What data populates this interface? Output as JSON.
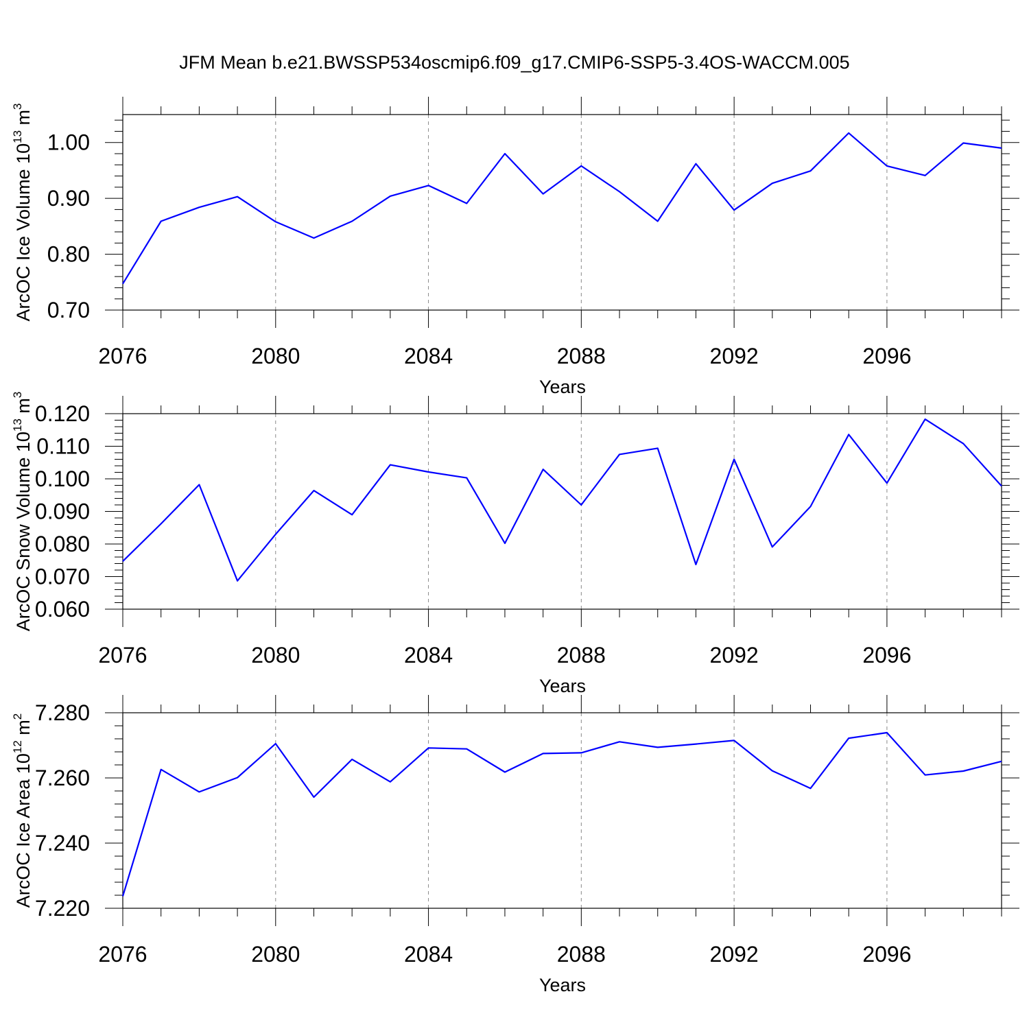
{
  "title": "JFM Mean b.e21.BWSSP534oscmip6.f09_g17.CMIP6-SSP5-3.4OS-WACCM.005",
  "colors": {
    "series": "#0000ff",
    "grid": "#888888",
    "axis": "#000000"
  },
  "chart_data": [
    {
      "type": "line",
      "xlabel": "Years",
      "ylabel": {
        "text": "ArcOC Ice Volume 10",
        "exp": "13",
        "unit": " m",
        "unit_exp": "3"
      },
      "xlim": [
        2076,
        2099
      ],
      "ylim": [
        0.7,
        1.05
      ],
      "x_major_ticks": [
        2076,
        2080,
        2084,
        2088,
        2092,
        2096
      ],
      "x_major_labels": [
        "2076",
        "2080",
        "2084",
        "2088",
        "2092",
        "2096"
      ],
      "y_major_ticks": [
        0.7,
        0.8,
        0.9,
        1.0
      ],
      "y_major_labels": [
        "0.70",
        "0.80",
        "0.90",
        "1.00"
      ],
      "y_minor_step": 0.02,
      "grid": "x-dashed",
      "x": [
        2076,
        2077,
        2078,
        2079,
        2080,
        2081,
        2082,
        2083,
        2084,
        2085,
        2086,
        2087,
        2088,
        2089,
        2090,
        2091,
        2092,
        2093,
        2094,
        2095,
        2096,
        2097,
        2098,
        2099
      ],
      "values": [
        0.747,
        0.859,
        0.884,
        0.903,
        0.858,
        0.829,
        0.859,
        0.904,
        0.923,
        0.891,
        0.98,
        0.908,
        0.958,
        0.912,
        0.859,
        0.962,
        0.879,
        0.927,
        0.949,
        1.017,
        0.958,
        0.941,
        0.999,
        0.99
      ]
    },
    {
      "type": "line",
      "xlabel": "Years",
      "ylabel": {
        "text": "ArcOC Snow Volume 10",
        "exp": "13",
        "unit": " m",
        "unit_exp": "3"
      },
      "xlim": [
        2076,
        2099
      ],
      "ylim": [
        0.06,
        0.12
      ],
      "x_major_ticks": [
        2076,
        2080,
        2084,
        2088,
        2092,
        2096
      ],
      "x_major_labels": [
        "2076",
        "2080",
        "2084",
        "2088",
        "2092",
        "2096"
      ],
      "y_major_ticks": [
        0.06,
        0.07,
        0.08,
        0.09,
        0.1,
        0.11,
        0.12
      ],
      "y_major_labels": [
        "0.060",
        "0.070",
        "0.080",
        "0.090",
        "0.100",
        "0.110",
        "0.120"
      ],
      "y_minor_step": 0.002,
      "grid": "x-dashed",
      "x": [
        2076,
        2077,
        2078,
        2079,
        2080,
        2081,
        2082,
        2083,
        2084,
        2085,
        2086,
        2087,
        2088,
        2089,
        2090,
        2091,
        2092,
        2093,
        2094,
        2095,
        2096,
        2097,
        2098,
        2099
      ],
      "values": [
        0.0747,
        0.0862,
        0.0982,
        0.0687,
        0.083,
        0.0964,
        0.089,
        0.1043,
        0.1021,
        0.1003,
        0.0802,
        0.1029,
        0.092,
        0.1075,
        0.1094,
        0.0737,
        0.106,
        0.0791,
        0.0915,
        0.1136,
        0.0987,
        0.1183,
        0.1108,
        0.0978
      ]
    },
    {
      "type": "line",
      "xlabel": "Years",
      "ylabel": {
        "text": "ArcOC Ice Area 10",
        "exp": "12",
        "unit": " m",
        "unit_exp": "2"
      },
      "xlim": [
        2076,
        2099
      ],
      "ylim": [
        7.22,
        7.28
      ],
      "x_major_ticks": [
        2076,
        2080,
        2084,
        2088,
        2092,
        2096
      ],
      "x_major_labels": [
        "2076",
        "2080",
        "2084",
        "2088",
        "2092",
        "2096"
      ],
      "y_major_ticks": [
        7.22,
        7.24,
        7.26,
        7.28
      ],
      "y_major_labels": [
        "7.220",
        "7.240",
        "7.260",
        "7.280"
      ],
      "y_minor_step": 0.004,
      "grid": "x-dashed",
      "x": [
        2076,
        2077,
        2078,
        2079,
        2080,
        2081,
        2082,
        2083,
        2084,
        2085,
        2086,
        2087,
        2088,
        2089,
        2090,
        2091,
        2092,
        2093,
        2094,
        2095,
        2096,
        2097,
        2098,
        2099
      ],
      "values": [
        7.2237,
        7.2626,
        7.2557,
        7.2601,
        7.2705,
        7.2541,
        7.2657,
        7.2588,
        7.2692,
        7.2689,
        7.2618,
        7.2675,
        7.2677,
        7.2711,
        7.2694,
        7.2704,
        7.2715,
        7.2622,
        7.2568,
        7.2722,
        7.2739,
        7.2609,
        7.2621,
        7.2651
      ]
    }
  ]
}
